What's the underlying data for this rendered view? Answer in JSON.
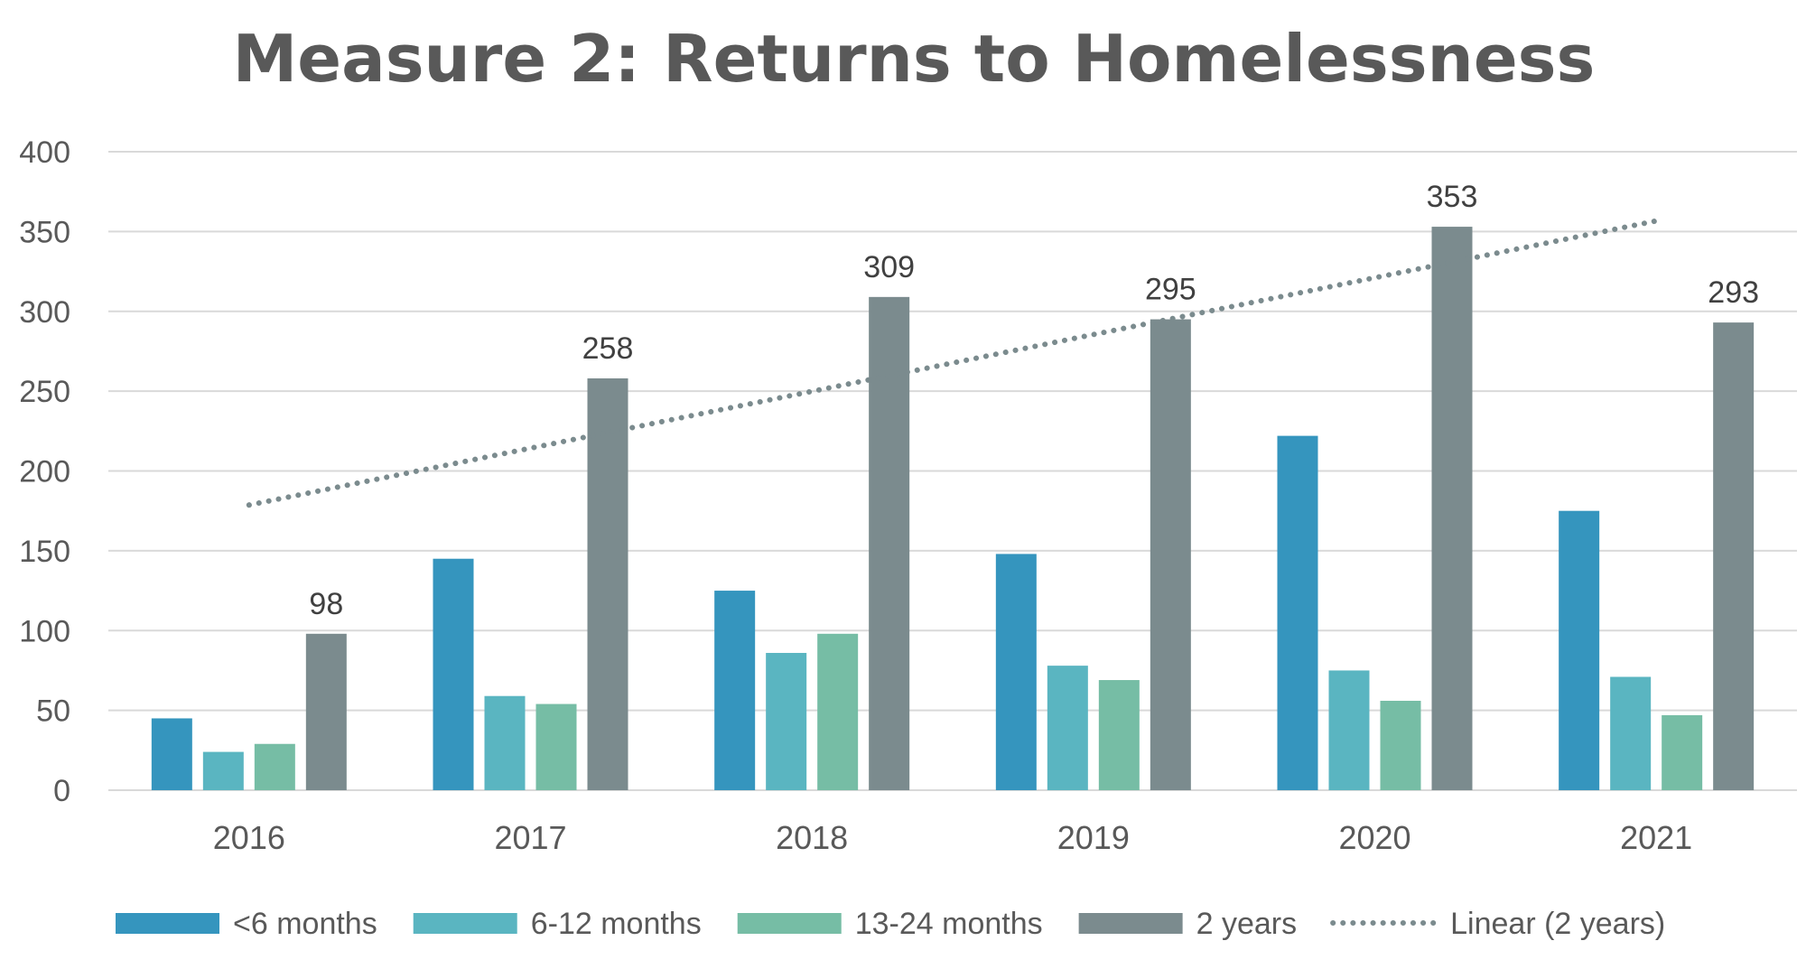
{
  "chart_data": {
    "type": "bar",
    "title": "Measure 2: Returns to Homelessness",
    "categories": [
      "2016",
      "2017",
      "2018",
      "2019",
      "2020",
      "2021"
    ],
    "series": [
      {
        "name": "<6 months",
        "color": "#3595BE",
        "values": [
          45,
          145,
          125,
          148,
          222,
          175
        ]
      },
      {
        "name": "6-12 months",
        "color": "#5AB5C1",
        "values": [
          24,
          59,
          86,
          78,
          75,
          71
        ]
      },
      {
        "name": "13-24 months",
        "color": "#76BDA5",
        "values": [
          29,
          54,
          98,
          69,
          56,
          47
        ]
      },
      {
        "name": "2 years",
        "color": "#7B8B8E",
        "values": [
          98,
          258,
          309,
          295,
          353,
          293
        ],
        "data_labels": [
          "98",
          "258",
          "309",
          "295",
          "353",
          "293"
        ]
      }
    ],
    "trendline": {
      "name": "Linear (2 years)",
      "type": "linear",
      "series": "2 years",
      "color": "#7B8B8E",
      "style": "dotted"
    },
    "ylim": [
      0,
      400
    ],
    "yticks": [
      "0",
      "50",
      "100",
      "150",
      "200",
      "250",
      "300",
      "350",
      "400"
    ],
    "xlabel": "",
    "ylabel": "",
    "grid": true,
    "legend_position": "bottom"
  }
}
